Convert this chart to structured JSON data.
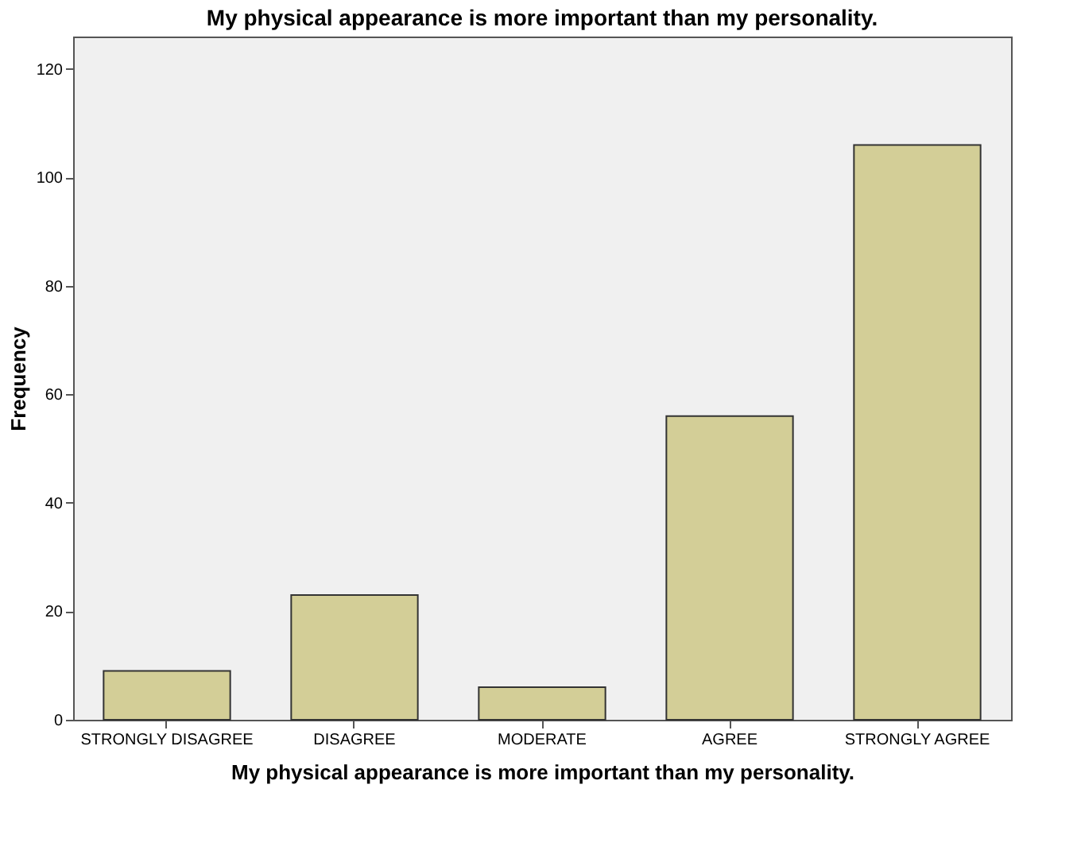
{
  "chart_data": {
    "type": "bar",
    "title": "My physical appearance is more important than my personality.",
    "xlabel": "My physical appearance is more important than my personality.",
    "ylabel": "Frequency",
    "categories": [
      "STRONGLY DISAGREE",
      "DISAGREE",
      "MODERATE",
      "AGREE",
      "STRONGLY AGREE"
    ],
    "values": [
      9,
      23,
      6,
      56,
      106
    ],
    "color": "#d3ce97",
    "ylim": [
      0,
      126
    ],
    "yticks": [
      0,
      20,
      40,
      60,
      80,
      100,
      120
    ],
    "grid": false
  }
}
